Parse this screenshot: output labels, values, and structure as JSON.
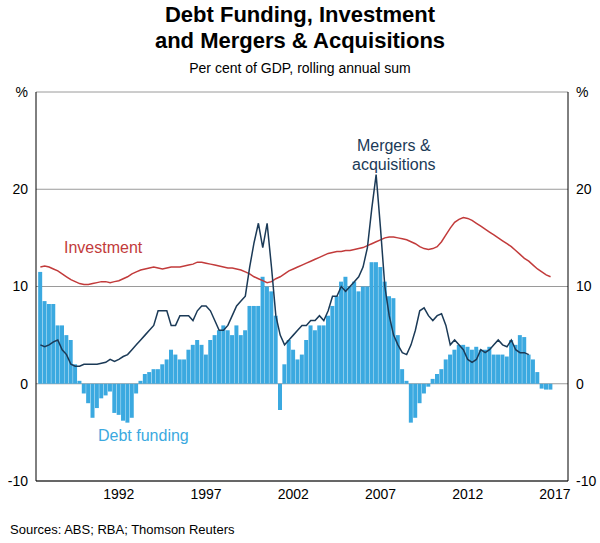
{
  "chart_data": {
    "type": "bar",
    "title": "Debt Funding, Investment and Mergers & Acquisitions",
    "subtitle": "Per cent of GDP, rolling annual sum",
    "source": "Sources: ABS; RBA; Thomson Reuters",
    "x": [
      1988,
      1988.25,
      1988.5,
      1988.75,
      1989,
      1989.25,
      1989.5,
      1989.75,
      1990,
      1990.25,
      1990.5,
      1990.75,
      1991,
      1991.25,
      1991.5,
      1991.75,
      1992,
      1992.25,
      1992.5,
      1992.75,
      1993,
      1993.25,
      1993.5,
      1993.75,
      1994,
      1994.25,
      1994.5,
      1994.75,
      1995,
      1995.25,
      1995.5,
      1995.75,
      1996,
      1996.25,
      1996.5,
      1996.75,
      1997,
      1997.25,
      1997.5,
      1997.75,
      1998,
      1998.25,
      1998.5,
      1998.75,
      1999,
      1999.25,
      1999.5,
      1999.75,
      2000,
      2000.25,
      2000.5,
      2000.75,
      2001,
      2001.25,
      2001.5,
      2001.75,
      2002,
      2002.25,
      2002.5,
      2002.75,
      2003,
      2003.25,
      2003.5,
      2003.75,
      2004,
      2004.25,
      2004.5,
      2004.75,
      2005,
      2005.25,
      2005.5,
      2005.75,
      2006,
      2006.25,
      2006.5,
      2006.75,
      2007,
      2007.25,
      2007.5,
      2007.75,
      2008,
      2008.25,
      2008.5,
      2008.75,
      2009,
      2009.25,
      2009.5,
      2009.75,
      2010,
      2010.25,
      2010.5,
      2010.75,
      2011,
      2011.25,
      2011.5,
      2011.75,
      2012,
      2012.25,
      2012.5,
      2012.75,
      2013,
      2013.25,
      2013.5,
      2013.75,
      2014,
      2014.25,
      2014.5,
      2014.75,
      2015,
      2015.25,
      2015.5,
      2015.75,
      2016,
      2016.25,
      2016.5,
      2016.75,
      2017,
      2017.25
    ],
    "xlim": [
      1987.75,
      2018.25
    ],
    "xticks": [
      {
        "value": 1992.5,
        "label": "1992"
      },
      {
        "value": 1997.5,
        "label": "1997"
      },
      {
        "value": 2002.5,
        "label": "2002"
      },
      {
        "value": 2007.5,
        "label": "2007"
      },
      {
        "value": 2012.5,
        "label": "2012"
      },
      {
        "value": 2017.5,
        "label": "2017"
      }
    ],
    "ylim": [
      -10,
      30
    ],
    "yticks": [
      -10,
      0,
      10,
      20,
      {
        "value": 30,
        "label": "%"
      }
    ],
    "y2lim": [
      -10,
      30
    ],
    "y2ticks": [
      -10,
      0,
      10,
      20,
      {
        "value": 30,
        "label": "%"
      }
    ],
    "grid": true,
    "series": [
      {
        "name": "Debt funding",
        "type": "bar",
        "color": "#3BA9E0",
        "values": [
          11.5,
          8.5,
          8.2,
          8.2,
          6.0,
          6.0,
          5.0,
          4.5,
          2.0,
          0.3,
          -1.0,
          -2.0,
          -3.5,
          -2.5,
          -1.5,
          -1.2,
          -0.8,
          -3.0,
          -3.2,
          -3.8,
          -4.0,
          -3.5,
          -1.0,
          0.3,
          1.0,
          1.2,
          1.5,
          1.5,
          2.0,
          2.5,
          3.5,
          3.0,
          2.5,
          2.5,
          3.5,
          4.0,
          4.5,
          4.0,
          3.0,
          4.5,
          5.0,
          5.5,
          6.0,
          5.5,
          5.0,
          6.0,
          5.0,
          5.5,
          8.0,
          8.0,
          8.0,
          11.0,
          10.0,
          9.5,
          7.0,
          -2.7,
          2.0,
          4.5,
          3.5,
          2.5,
          3.0,
          4.5,
          6.0,
          5.5,
          6.0,
          6.0,
          7.0,
          8.0,
          9.0,
          10.5,
          11.0,
          10.0,
          10.5,
          9.5,
          10.0,
          10.0,
          12.5,
          12.5,
          12.0,
          10.5,
          9.0,
          8.8,
          5.0,
          1.5,
          0.3,
          -4.0,
          -3.5,
          -2.0,
          -1.0,
          -0.3,
          0.5,
          1.0,
          1.5,
          2.5,
          3.0,
          3.5,
          4.0,
          4.0,
          3.8,
          3.5,
          3.8,
          3.5,
          3.5,
          3.8,
          3.0,
          3.0,
          3.0,
          2.8,
          4.5,
          4.0,
          5.0,
          4.8,
          3.0,
          2.5,
          1.2,
          -0.5,
          -0.6,
          -0.6
        ]
      },
      {
        "name": "Investment",
        "type": "line",
        "color": "#C23B3B",
        "values": [
          12.0,
          12.1,
          12.0,
          11.8,
          11.6,
          11.3,
          11.0,
          10.7,
          10.5,
          10.3,
          10.2,
          10.2,
          10.3,
          10.4,
          10.5,
          10.5,
          10.4,
          10.5,
          10.6,
          10.8,
          11.0,
          11.3,
          11.5,
          11.7,
          11.8,
          11.9,
          12.0,
          11.9,
          11.8,
          11.9,
          12.0,
          12.0,
          12.0,
          12.1,
          12.2,
          12.3,
          12.5,
          12.5,
          12.4,
          12.3,
          12.2,
          12.1,
          12.0,
          11.9,
          11.9,
          11.8,
          11.7,
          11.5,
          11.3,
          11.0,
          10.8,
          10.6,
          10.4,
          10.5,
          10.8,
          11.0,
          11.3,
          11.6,
          11.8,
          12.0,
          12.2,
          12.4,
          12.6,
          12.8,
          13.0,
          13.2,
          13.4,
          13.5,
          13.6,
          13.6,
          13.7,
          13.7,
          13.8,
          13.9,
          14.0,
          14.2,
          14.4,
          14.6,
          14.8,
          15.0,
          15.1,
          15.1,
          15.0,
          14.9,
          14.8,
          14.6,
          14.4,
          14.1,
          13.9,
          13.8,
          13.9,
          14.1,
          14.6,
          15.3,
          16.0,
          16.6,
          16.9,
          17.1,
          17.0,
          16.8,
          16.5,
          16.2,
          15.9,
          15.6,
          15.3,
          15.0,
          14.7,
          14.4,
          14.1,
          13.7,
          13.3,
          12.9,
          12.6,
          12.2,
          11.8,
          11.5,
          11.2,
          11.0
        ]
      },
      {
        "name": "Mergers & acquisitions",
        "type": "line",
        "color": "#1B3A57",
        "values": [
          4.0,
          3.8,
          4.0,
          4.3,
          4.5,
          3.5,
          3.0,
          2.0,
          1.8,
          1.8,
          2.0,
          2.0,
          2.0,
          2.0,
          2.1,
          2.2,
          2.5,
          2.3,
          2.5,
          2.8,
          3.0,
          3.5,
          4.0,
          4.5,
          5.0,
          5.5,
          6.0,
          7.5,
          7.5,
          7.5,
          6.0,
          6.0,
          7.0,
          7.0,
          7.0,
          6.5,
          7.5,
          8.0,
          8.0,
          7.5,
          6.5,
          5.5,
          5.5,
          6.0,
          7.0,
          8.0,
          8.5,
          9.0,
          12.0,
          14.5,
          16.5,
          14.0,
          16.5,
          12.0,
          7.0,
          5.0,
          4.0,
          4.5,
          5.0,
          5.5,
          6.0,
          6.0,
          6.5,
          6.5,
          7.0,
          6.5,
          7.5,
          9.0,
          9.0,
          10.0,
          9.5,
          10.0,
          10.5,
          11.0,
          12.0,
          14.0,
          18.0,
          21.5,
          16.0,
          10.0,
          7.0,
          5.0,
          4.0,
          3.2,
          3.0,
          4.0,
          5.5,
          7.5,
          7.8,
          7.0,
          6.5,
          7.0,
          7.2,
          6.0,
          4.0,
          4.5,
          4.0,
          3.5,
          2.5,
          2.2,
          2.5,
          3.5,
          3.2,
          3.5,
          4.0,
          4.5,
          4.0,
          3.8,
          4.5,
          3.5,
          3.2,
          3.2,
          3.0,
          null,
          null,
          null,
          null,
          null
        ]
      }
    ]
  }
}
